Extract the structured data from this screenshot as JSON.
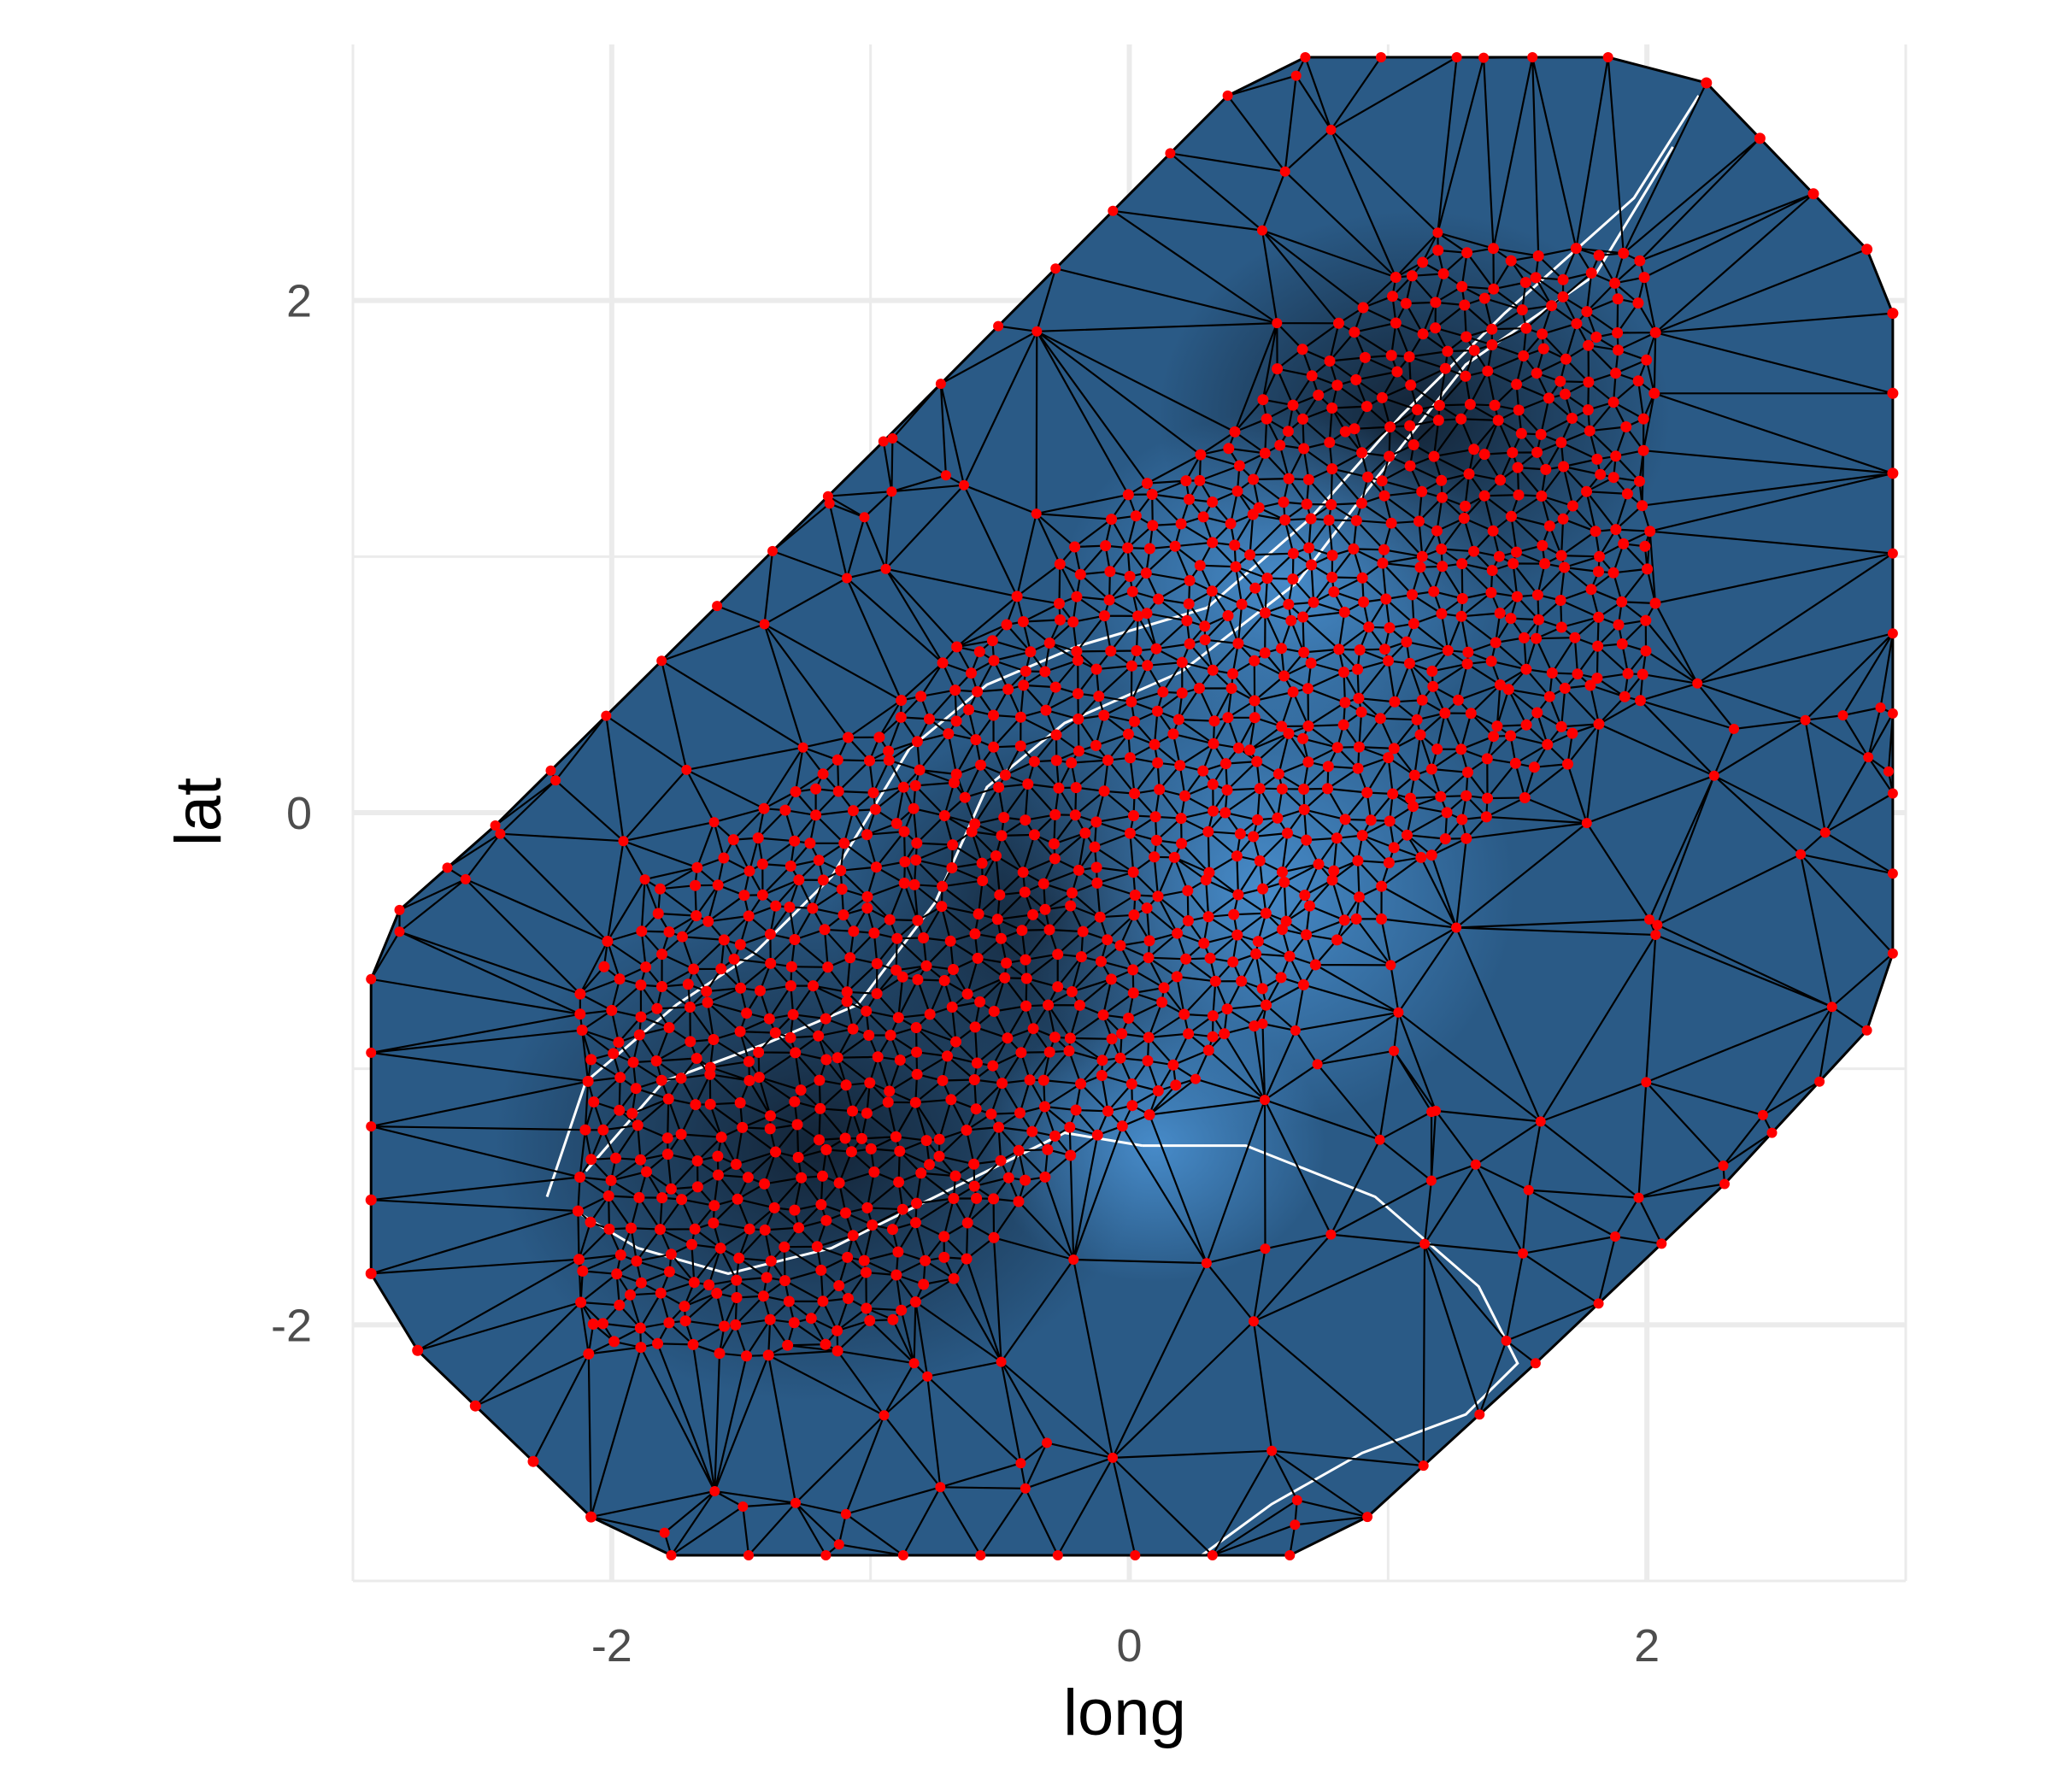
{
  "chart_data": {
    "type": "mesh_raster",
    "title": "",
    "xlabel": "long",
    "ylabel": "lat",
    "xlim": [
      -3.0,
      3.0
    ],
    "ylim": [
      -3.0,
      3.0
    ],
    "x_ticks": [
      -2,
      0,
      2
    ],
    "y_ticks": [
      -2,
      0,
      2
    ],
    "x_ticks_minor": [
      -3,
      -1,
      1,
      3
    ],
    "y_ticks_minor": [
      -3,
      -1,
      1
    ],
    "grid": true,
    "theme": "minimal",
    "colors": {
      "fill_dark": "#1a2d44",
      "fill_mid": "#2a5a86",
      "fill_light": "#4a90d0",
      "mesh_edge": "#000000",
      "mesh_node": "#ff0000",
      "contour": "#ffffff",
      "grid": "#ebebeb"
    },
    "mesh_boundary": [
      [
        0.68,
        2.95
      ],
      [
        1.85,
        2.95
      ],
      [
        2.23,
        2.85
      ],
      [
        2.85,
        2.2
      ],
      [
        2.95,
        1.95
      ],
      [
        2.95,
        -0.55
      ],
      [
        2.85,
        -0.85
      ],
      [
        2.3,
        -1.45
      ],
      [
        1.57,
        -2.15
      ],
      [
        0.92,
        -2.75
      ],
      [
        0.62,
        -2.9
      ],
      [
        -1.77,
        -2.9
      ],
      [
        -2.08,
        -2.75
      ],
      [
        -2.75,
        -2.1
      ],
      [
        -2.93,
        -1.8
      ],
      [
        -2.93,
        -0.65
      ],
      [
        -2.82,
        -0.38
      ],
      [
        -2.45,
        -0.05
      ],
      [
        -0.95,
        1.45
      ],
      [
        0.38,
        2.8
      ]
    ],
    "interior_region": {
      "x_range": [
        -2.1,
        2.1
      ],
      "y_range": [
        -2.1,
        2.2
      ]
    },
    "contours": [
      [
        [
          -2.25,
          -1.5
        ],
        [
          -2.1,
          -1.05
        ],
        [
          -1.75,
          -0.75
        ],
        [
          -1.45,
          -0.55
        ],
        [
          -1.15,
          -0.25
        ],
        [
          -0.85,
          0.25
        ],
        [
          -0.55,
          0.5
        ],
        [
          -0.2,
          0.65
        ],
        [
          0.3,
          0.8
        ],
        [
          0.7,
          1.15
        ],
        [
          1.05,
          1.55
        ],
        [
          1.45,
          1.95
        ],
        [
          1.95,
          2.4
        ],
        [
          2.2,
          2.8
        ]
      ],
      [
        [
          -2.1,
          -1.4
        ],
        [
          -1.8,
          -1.05
        ],
        [
          -1.4,
          -0.9
        ],
        [
          -1.05,
          -0.75
        ],
        [
          -0.75,
          -0.35
        ],
        [
          -0.55,
          0.1
        ],
        [
          -0.25,
          0.35
        ],
        [
          0.2,
          0.55
        ],
        [
          0.65,
          0.9
        ],
        [
          0.95,
          1.3
        ],
        [
          1.3,
          1.75
        ],
        [
          1.8,
          2.1
        ],
        [
          2.1,
          2.6
        ]
      ],
      [
        [
          0.05,
          -1.3
        ],
        [
          0.45,
          -1.3
        ],
        [
          0.95,
          -1.5
        ],
        [
          1.35,
          -1.85
        ],
        [
          1.5,
          -2.15
        ],
        [
          1.3,
          -2.35
        ],
        [
          0.9,
          -2.5
        ],
        [
          0.55,
          -2.7
        ],
        [
          0.28,
          -2.9
        ]
      ],
      [
        [
          -2.15,
          -1.55
        ],
        [
          -1.9,
          -1.7
        ],
        [
          -1.55,
          -1.8
        ],
        [
          -1.15,
          -1.7
        ],
        [
          -0.85,
          -1.55
        ],
        [
          -0.55,
          -1.4
        ],
        [
          -0.25,
          -1.25
        ],
        [
          0.05,
          -1.3
        ]
      ]
    ]
  }
}
